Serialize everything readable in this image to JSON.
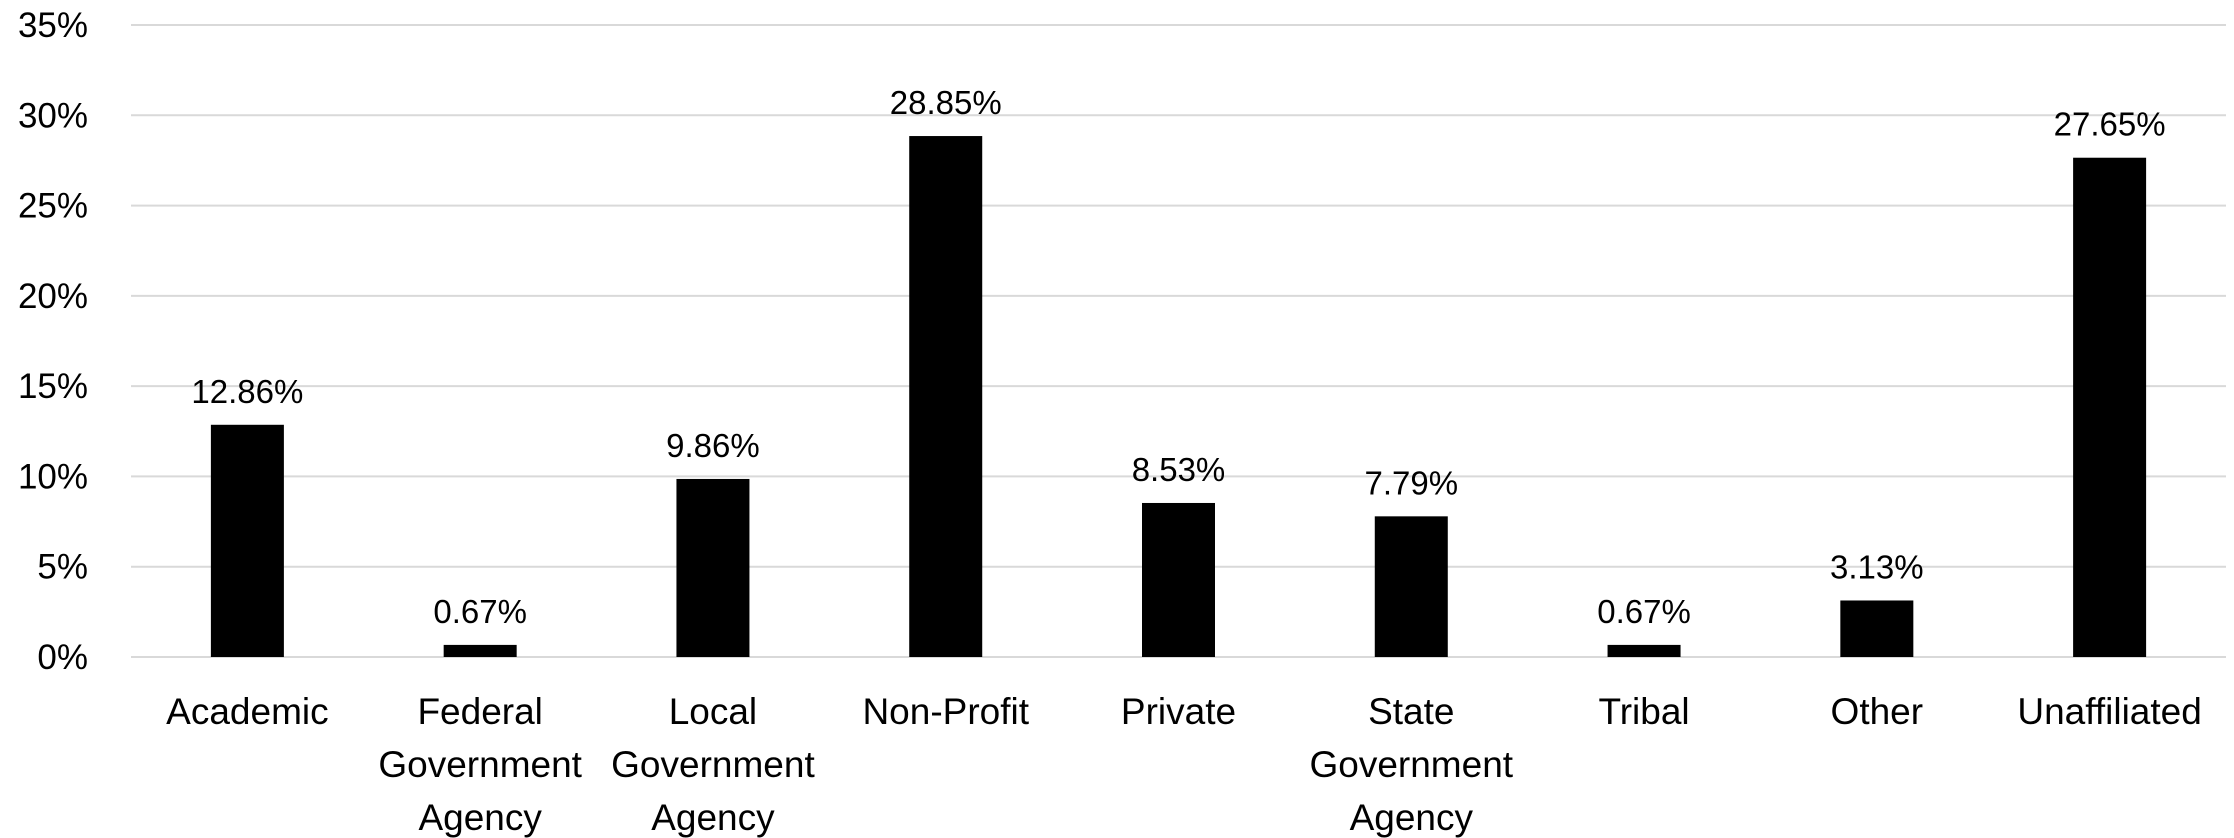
{
  "chart_data": {
    "type": "bar",
    "title": "",
    "xlabel": "",
    "ylabel": "",
    "ylim": [
      0,
      35
    ],
    "yticks": [
      0,
      5,
      10,
      15,
      20,
      25,
      30,
      35
    ],
    "ytick_labels": [
      "0%",
      "5%",
      "10%",
      "15%",
      "20%",
      "25%",
      "30%",
      "35%"
    ],
    "grid": true,
    "legend": "none",
    "bar_color": "#000000",
    "categories": [
      "Academic",
      "Federal Government Agency",
      "Local Government Agency",
      "Non-Profit",
      "Private",
      "State Government Agency",
      "Tribal",
      "Other",
      "Unaffiliated"
    ],
    "category_label_lines": [
      [
        "Academic"
      ],
      [
        "Federal",
        "Government",
        "Agency"
      ],
      [
        "Local",
        "Government",
        "Agency"
      ],
      [
        "Non-Profit"
      ],
      [
        "Private"
      ],
      [
        "State",
        "Government",
        "Agency"
      ],
      [
        "Tribal"
      ],
      [
        "Other"
      ],
      [
        "Unaffiliated"
      ]
    ],
    "values": [
      12.86,
      0.67,
      9.86,
      28.85,
      8.53,
      7.79,
      0.67,
      3.13,
      27.65
    ],
    "data_labels": [
      "12.86%",
      "0.67%",
      "9.86%",
      "28.85%",
      "8.53%",
      "7.79%",
      "0.67%",
      "3.13%",
      "27.65%"
    ]
  }
}
